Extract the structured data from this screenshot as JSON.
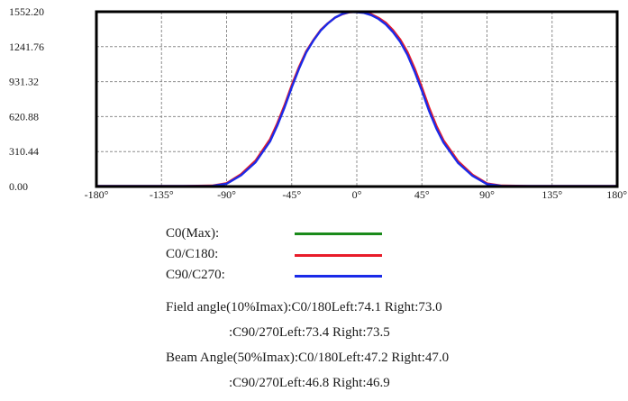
{
  "chart_data": {
    "type": "line",
    "title": "",
    "xlabel": "",
    "ylabel": "",
    "xlim": [
      -180,
      180
    ],
    "ylim": [
      0,
      1552.2
    ],
    "x_ticks": [
      "-180°",
      "-135°",
      "-90°",
      "-45°",
      "0°",
      "45°",
      "90°",
      "135°",
      "180°"
    ],
    "x_tick_values": [
      -180,
      -135,
      -90,
      -45,
      0,
      45,
      90,
      135,
      180
    ],
    "y_ticks": [
      "0.00",
      "310.44",
      "620.88",
      "931.32",
      "1241.76",
      "1552.20"
    ],
    "y_tick_values": [
      0,
      310.44,
      620.88,
      931.32,
      1241.76,
      1552.2
    ],
    "grid": true,
    "legend_position": "bottom",
    "series": [
      {
        "name": "C0(Max):",
        "color": "#1a8a1a",
        "x": [],
        "y": []
      },
      {
        "name": "C0/C180:",
        "color": "#e81c2a",
        "x": [
          -180,
          -150,
          -120,
          -100,
          -90,
          -80,
          -70,
          -60,
          -55,
          -50,
          -45,
          -40,
          -35,
          -30,
          -25,
          -20,
          -15,
          -10,
          -5,
          0,
          5,
          10,
          15,
          20,
          25,
          30,
          35,
          40,
          45,
          50,
          55,
          60,
          70,
          80,
          90,
          100,
          120,
          150,
          180
        ],
        "y": [
          5,
          5,
          5,
          8,
          30,
          110,
          230,
          420,
          560,
          720,
          900,
          1060,
          1200,
          1300,
          1390,
          1450,
          1500,
          1530,
          1548,
          1552,
          1546,
          1530,
          1498,
          1455,
          1390,
          1305,
          1195,
          1050,
          880,
          700,
          540,
          410,
          225,
          105,
          28,
          8,
          5,
          5,
          5
        ]
      },
      {
        "name": "C90/C270:",
        "color": "#1a2ae8",
        "x": [
          -180,
          -150,
          -120,
          -100,
          -90,
          -80,
          -70,
          -60,
          -55,
          -50,
          -45,
          -40,
          -35,
          -30,
          -25,
          -20,
          -15,
          -10,
          -5,
          0,
          5,
          10,
          15,
          20,
          25,
          30,
          35,
          40,
          45,
          50,
          55,
          60,
          70,
          80,
          90,
          100,
          120,
          150,
          180
        ],
        "y": [
          5,
          5,
          5,
          6,
          25,
          100,
          215,
          400,
          540,
          700,
          880,
          1045,
          1190,
          1295,
          1385,
          1448,
          1500,
          1532,
          1550,
          1548,
          1542,
          1522,
          1488,
          1440,
          1372,
          1285,
          1170,
          1020,
          850,
          670,
          515,
          390,
          210,
          95,
          22,
          6,
          5,
          5,
          5
        ]
      }
    ]
  },
  "angles": {
    "field_line1": "Field angle(10%Imax):C0/180Left:74.1 Right:73.0",
    "field_line2": ":C90/270Left:73.4 Right:73.5",
    "beam_line1": "Beam Angle(50%Imax):C0/180Left:47.2 Right:47.0",
    "beam_line2": ":C90/270Left:46.8 Right:46.9"
  }
}
